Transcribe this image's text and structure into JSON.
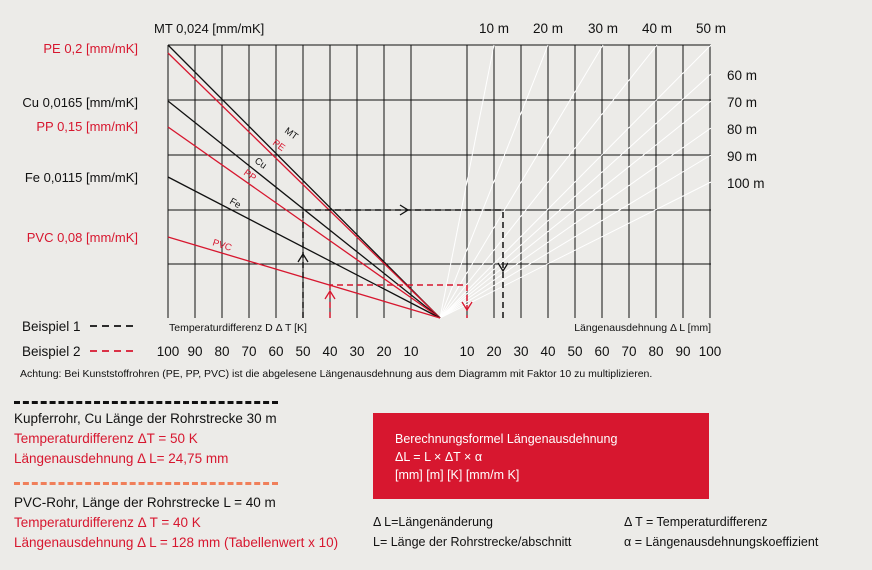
{
  "diagram": {
    "materials": [
      {
        "key": "mt",
        "label": "MT 0,024 [mm/mK]",
        "line_label": "MT",
        "color": "#111111"
      },
      {
        "key": "pe",
        "label": "PE 0,2 [mm/mK]",
        "line_label": "PE",
        "color": "#d7172f"
      },
      {
        "key": "cu",
        "label": "Cu 0,0165 [mm/mK]",
        "line_label": "Cu",
        "color": "#111111"
      },
      {
        "key": "pp",
        "label": "PP 0,15 [mm/mK]",
        "line_label": "PP",
        "color": "#d7172f"
      },
      {
        "key": "fe",
        "label": "Fe 0,0115 [mm/mK]",
        "line_label": "Fe",
        "color": "#111111"
      },
      {
        "key": "pvc",
        "label": "PVC 0,08 [mm/mK]",
        "line_label": "PVC",
        "color": "#d7172f"
      }
    ],
    "length_labels": [
      "10 m",
      "20 m",
      "30 m",
      "40 m",
      "50 m",
      "60 m",
      "70 m",
      "80 m",
      "90 m",
      "100 m"
    ],
    "left_axis_ticks": [
      "100",
      "90",
      "80",
      "70",
      "60",
      "50",
      "40",
      "30",
      "20",
      "10"
    ],
    "right_axis_ticks": [
      "10",
      "20",
      "30",
      "40",
      "50",
      "60",
      "70",
      "80",
      "90",
      "100"
    ],
    "left_axis_title": "Temperaturdifferenz D Δ T [K]",
    "right_axis_title": "Längenausdehnung Δ L [mm]",
    "example_legend": [
      {
        "label": "Beispiel 1",
        "color": "#111111"
      },
      {
        "label": "Beispiel 2",
        "color": "#d7172f"
      }
    ]
  },
  "note": "Achtung: Bei Kunststoffrohren (PE, PP, PVC) ist die abgelesene Längenausdehnung aus dem Diagramm mit Faktor 10 zu multiplizieren.",
  "example1": {
    "title": "Kupferrohr, Cu Länge der Rohrstrecke 30 m",
    "line1": "Temperaturdifferenz ΔT = 50 K",
    "line2": "Längenausdehnung Δ L= 24,75 mm"
  },
  "example2": {
    "title": "PVC-Rohr, Länge der Rohrstrecke L = 40 m",
    "line1": "Temperaturdifferenz Δ T = 40 K",
    "line2": "Längenausdehnung Δ L = 128 mm (Tabellenwert x 10)"
  },
  "formula": {
    "title": "Berechnungsformel Längenausdehnung",
    "equation": "ΔL = L × ΔT × α",
    "units": "[mm] [m] [K] [mm/m K]"
  },
  "definitions": {
    "dl": "Δ L=Längenänderung",
    "l": "L= Länge der Rohrstrecke/abschnitt",
    "dt": "Δ T = Temperaturdifferenz",
    "alpha": "α = Längenausdehnungskoeffizient"
  },
  "colors": {
    "accent": "#d7172f",
    "background": "#ecebe8",
    "ink": "#111111"
  }
}
